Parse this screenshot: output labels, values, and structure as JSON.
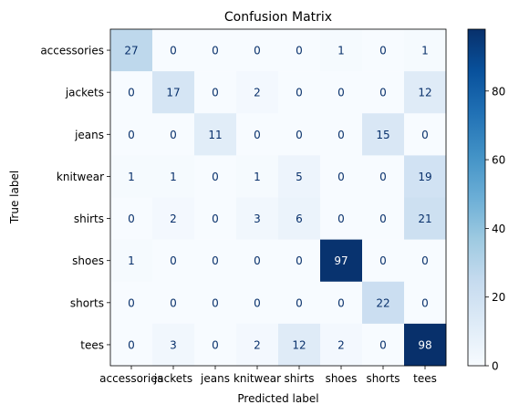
{
  "chart_data": {
    "type": "heatmap",
    "title": "Confusion Matrix",
    "xlabel": "Predicted label",
    "ylabel": "True label",
    "x_categories": [
      "accessories",
      "jackets",
      "jeans",
      "knitwear",
      "shirts",
      "shoes",
      "shorts",
      "tees"
    ],
    "y_categories": [
      "accessories",
      "jackets",
      "jeans",
      "knitwear",
      "shirts",
      "shoes",
      "shorts",
      "tees"
    ],
    "values": [
      [
        27,
        0,
        0,
        0,
        0,
        1,
        0,
        1
      ],
      [
        0,
        17,
        0,
        2,
        0,
        0,
        0,
        12
      ],
      [
        0,
        0,
        11,
        0,
        0,
        0,
        15,
        0
      ],
      [
        1,
        1,
        0,
        1,
        5,
        0,
        0,
        19
      ],
      [
        0,
        2,
        0,
        3,
        6,
        0,
        0,
        21
      ],
      [
        1,
        0,
        0,
        0,
        0,
        97,
        0,
        0
      ],
      [
        0,
        0,
        0,
        0,
        0,
        0,
        22,
        0
      ],
      [
        0,
        3,
        0,
        2,
        12,
        2,
        0,
        98
      ]
    ],
    "colormap": "Blues",
    "colorbar": {
      "vmin": 0,
      "vmax": 98,
      "ticks": [
        0,
        20,
        40,
        60,
        80
      ]
    },
    "grid": false
  }
}
